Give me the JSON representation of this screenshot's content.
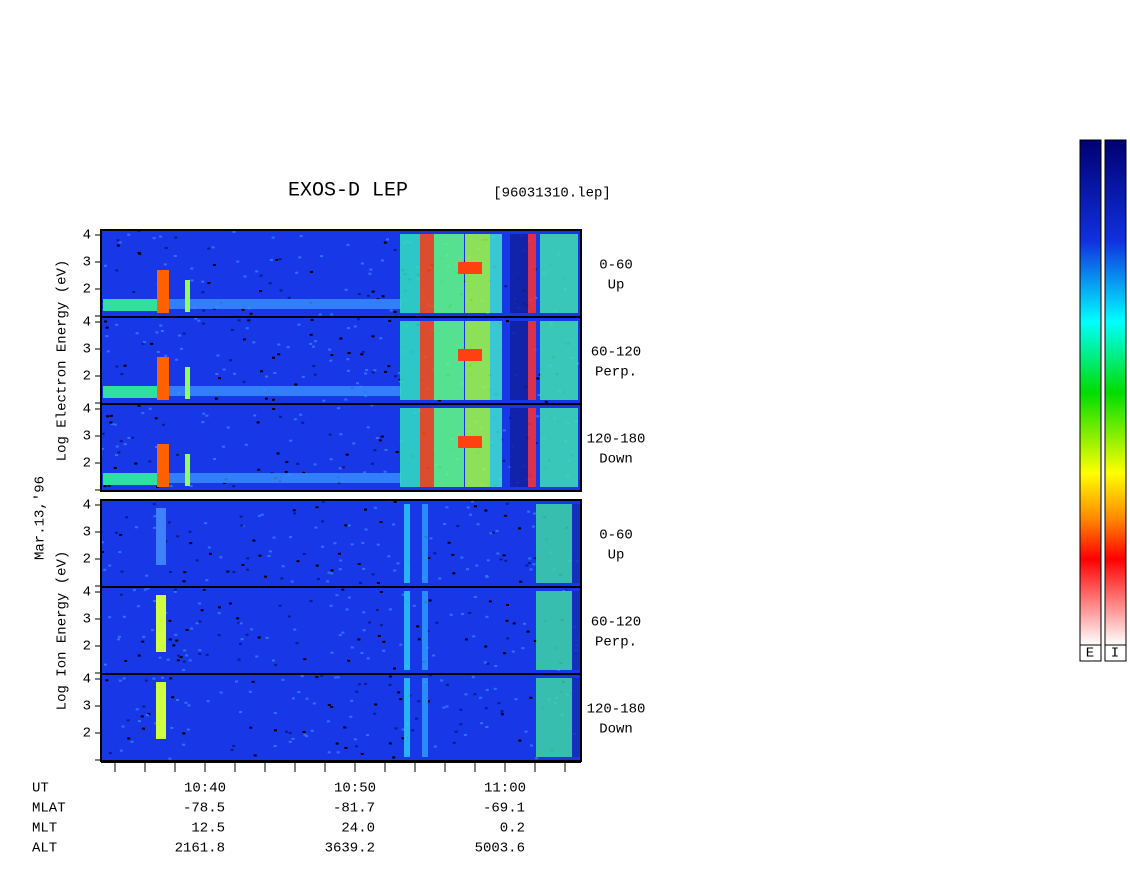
{
  "title": "EXOS-D LEP",
  "file": "[96031310.lep]",
  "date": "Mar.13,'96",
  "groups": [
    {
      "ylabel": "Log  Electron  Energy (eV)",
      "panels": [
        {
          "angle": "0-60",
          "direction": "Up"
        },
        {
          "angle": "60-120",
          "direction": "Perp."
        },
        {
          "angle": "120-180",
          "direction": "Down"
        }
      ]
    },
    {
      "ylabel": "Log  Ion  Energy (eV)",
      "panels": [
        {
          "angle": "0-60",
          "direction": "Up"
        },
        {
          "angle": "60-120",
          "direction": "Perp."
        },
        {
          "angle": "120-180",
          "direction": "Down"
        }
      ]
    }
  ],
  "yticks": [
    "4",
    "3",
    "2"
  ],
  "ephemeris": {
    "rows": [
      {
        "name": "UT",
        "values": [
          "10:40",
          "10:50",
          "11:00"
        ]
      },
      {
        "name": "MLAT",
        "values": [
          "-78.5",
          "-81.7",
          "-69.1"
        ]
      },
      {
        "name": "MLT",
        "values": [
          "12.5",
          "24.0",
          "0.2"
        ]
      },
      {
        "name": "ALT",
        "values": [
          "2161.8",
          "3639.2",
          "5003.6"
        ]
      }
    ]
  },
  "colorbar": [
    "E",
    "I"
  ]
}
